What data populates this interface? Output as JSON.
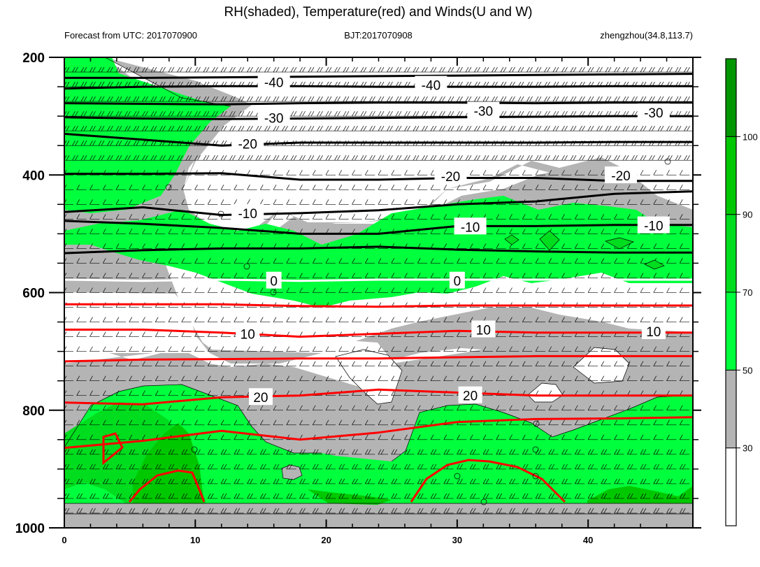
{
  "chart_data": {
    "type": "contour",
    "title": "RH(shaded), Temperature(red) and Winds(U and W)",
    "subtitle_left": "Forecast from UTC: 2017070900",
    "subtitle_center": "BJT:2017070908",
    "subtitle_right": "zhengzhou(34.8,113.7)",
    "x": {
      "range": [
        0,
        48
      ],
      "major_ticks": [
        0,
        10,
        20,
        30,
        40
      ],
      "labels": [
        "0",
        "10",
        "20",
        "30",
        "40"
      ],
      "minor_step": 2
    },
    "y": {
      "range": [
        200,
        1000
      ],
      "inverted": true,
      "major_ticks": [
        200,
        400,
        600,
        800,
        1000
      ],
      "labels": [
        "200",
        "400",
        "600",
        "800",
        "1000"
      ],
      "minor_step": 50
    },
    "colorbar": {
      "levels": [
        "30",
        "50",
        "70",
        "90",
        "100"
      ],
      "colors": [
        "#ffffff",
        "#b4b4b4",
        "#00ff3c",
        "#00dc1e",
        "#00c800",
        "#009600"
      ]
    },
    "temperature_contours": [
      {
        "level": "-40",
        "color": "#000000",
        "y": [
          235,
          235,
          234,
          233,
          232,
          231,
          230,
          229,
          228
        ]
      },
      {
        "level": "-40",
        "color": "#000000",
        "y": [
          253,
          250,
          249,
          249,
          250,
          250,
          250,
          249,
          249
        ]
      },
      {
        "level": "-30",
        "color": "#000000",
        "y": [
          278,
          279,
          280,
          278,
          277,
          277,
          278,
          277,
          277
        ]
      },
      {
        "level": "-30",
        "color": "#000000",
        "y": [
          302,
          304,
          305,
          304,
          303,
          302,
          301,
          300,
          300
        ]
      },
      {
        "level": "-20",
        "color": "#000000",
        "y": [
          330,
          340,
          350,
          345,
          345,
          345,
          345,
          344,
          344
        ]
      },
      {
        "level": "-20",
        "color": "#000000",
        "y": [
          398,
          398,
          397,
          408,
          408,
          405,
          405,
          410,
          410
        ]
      },
      {
        "level": "-10",
        "color": "#000000",
        "y": [
          463,
          455,
          468,
          465,
          460,
          450,
          445,
          432,
          428
        ]
      },
      {
        "level": "-10",
        "color": "#000000",
        "y": [
          478,
          483,
          490,
          500,
          500,
          487,
          487,
          485,
          485
        ]
      },
      {
        "level": "-10",
        "color": "#000000",
        "y": [
          533,
          528,
          525,
          525,
          522,
          527,
          530,
          532,
          532
        ]
      },
      {
        "level": "0",
        "color": "#ffffff",
        "y": [
          578,
          580,
          578,
          580,
          578,
          578,
          578,
          578,
          578
        ]
      },
      {
        "level": "10",
        "color": "#ff0000",
        "y": [
          620,
          620,
          620,
          623,
          624,
          622,
          622,
          622,
          622
        ]
      },
      {
        "level": "10",
        "color": "#ff0000",
        "y": [
          663,
          663,
          668,
          675,
          670,
          665,
          668,
          668,
          668
        ]
      },
      {
        "level": "20",
        "color": "#ff0000",
        "y": [
          717,
          714,
          713,
          712,
          712,
          710,
          708,
          708,
          708
        ]
      },
      {
        "level": "20",
        "color": "#ff0000",
        "y": [
          787,
          790,
          778,
          775,
          765,
          770,
          775,
          775,
          775
        ]
      },
      {
        "level": "20",
        "color": "#ff0000",
        "y": [
          864,
          852,
          835,
          850,
          838,
          820,
          815,
          814,
          812
        ]
      }
    ],
    "contour_labels": [
      {
        "text": "-40",
        "x": 16.0,
        "y": 242
      },
      {
        "text": "-40",
        "x": 28.0,
        "y": 247
      },
      {
        "text": "-30",
        "x": 16.0,
        "y": 303
      },
      {
        "text": "-30",
        "x": 32.0,
        "y": 291
      },
      {
        "text": "-30",
        "x": 45.0,
        "y": 294
      },
      {
        "text": "-20",
        "x": 14.0,
        "y": 347
      },
      {
        "text": "-20",
        "x": 29.5,
        "y": 402
      },
      {
        "text": "-20",
        "x": 42.5,
        "y": 401
      },
      {
        "text": "-10",
        "x": 14.0,
        "y": 465
      },
      {
        "text": "-10",
        "x": 31.0,
        "y": 488
      },
      {
        "text": "-10",
        "x": 45.0,
        "y": 486
      },
      {
        "text": "0",
        "x": 16.0,
        "y": 580
      },
      {
        "text": "0",
        "x": 30.0,
        "y": 580
      },
      {
        "text": "10",
        "x": 14.0,
        "y": 670
      },
      {
        "text": "10",
        "x": 32.0,
        "y": 663
      },
      {
        "text": "10",
        "x": 45.0,
        "y": 666
      },
      {
        "text": "20",
        "x": 15.0,
        "y": 778
      },
      {
        "text": "20",
        "x": 31.0,
        "y": 775
      }
    ]
  }
}
